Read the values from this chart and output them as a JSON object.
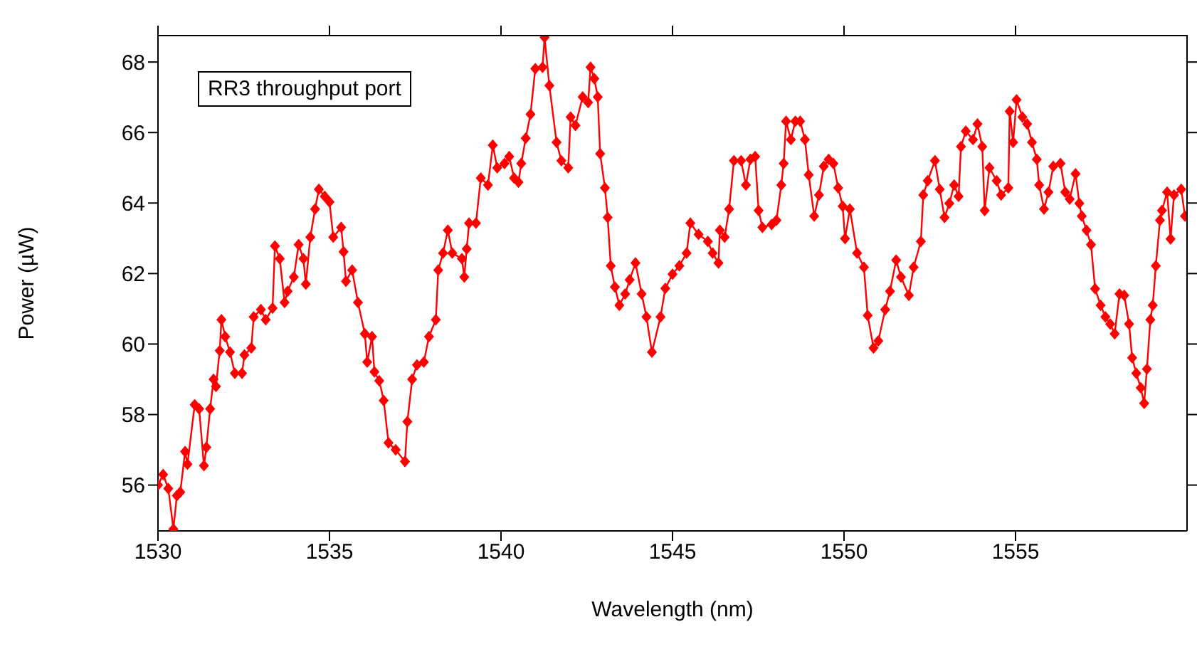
{
  "chart_data": {
    "type": "line",
    "xlabel": "Wavelength (nm)",
    "ylabel": "Power (µW)",
    "annotations": [
      "RR3 throughput port"
    ],
    "xlim": [
      1530,
      1560
    ],
    "xticks": [
      1530,
      1535,
      1540,
      1545,
      1550,
      1555
    ],
    "ylim": [
      54.7,
      68.75
    ],
    "yticks": [
      56,
      58,
      60,
      62,
      64,
      66,
      68
    ],
    "marker": "diamond",
    "line_style": "solid",
    "series": [
      {
        "color": "#ff0000",
        "x": [
          1530.0,
          1530.15,
          1530.3,
          1530.45,
          1530.55,
          1530.65,
          1530.79,
          1530.86,
          1531.07,
          1531.2,
          1531.34,
          1531.41,
          1531.52,
          1531.62,
          1531.69,
          1531.8,
          1531.85,
          1531.96,
          1532.1,
          1532.24,
          1532.45,
          1532.52,
          1532.72,
          1532.79,
          1533.0,
          1533.14,
          1533.34,
          1533.41,
          1533.55,
          1533.69,
          1533.78,
          1533.96,
          1534.1,
          1534.24,
          1534.31,
          1534.44,
          1534.58,
          1534.69,
          1534.86,
          1535.0,
          1535.11,
          1535.34,
          1535.41,
          1535.48,
          1535.66,
          1535.83,
          1536.03,
          1536.1,
          1536.24,
          1536.31,
          1536.45,
          1536.58,
          1536.72,
          1536.93,
          1537.2,
          1537.27,
          1537.41,
          1537.55,
          1537.75,
          1537.9,
          1538.1,
          1538.17,
          1538.31,
          1538.45,
          1538.58,
          1538.86,
          1538.93,
          1539.0,
          1539.07,
          1539.27,
          1539.41,
          1539.62,
          1539.76,
          1539.89,
          1540.1,
          1540.24,
          1540.38,
          1540.51,
          1540.59,
          1540.72,
          1540.86,
          1541.0,
          1541.21,
          1541.27,
          1541.41,
          1541.62,
          1541.76,
          1541.96,
          1542.03,
          1542.17,
          1542.38,
          1542.54,
          1542.61,
          1542.72,
          1542.82,
          1542.89,
          1543.03,
          1543.11,
          1543.2,
          1543.32,
          1543.45,
          1543.62,
          1543.75,
          1543.92,
          1544.1,
          1544.24,
          1544.4,
          1544.65,
          1544.79,
          1545.0,
          1545.2,
          1545.41,
          1545.52,
          1545.76,
          1546.03,
          1546.17,
          1546.34,
          1546.38,
          1546.52,
          1546.65,
          1546.79,
          1547.0,
          1547.14,
          1547.27,
          1547.41,
          1547.51,
          1547.62,
          1547.89,
          1548.03,
          1548.17,
          1548.24,
          1548.31,
          1548.45,
          1548.58,
          1548.72,
          1548.86,
          1548.97,
          1549.13,
          1549.27,
          1549.41,
          1549.55,
          1549.69,
          1549.83,
          1549.96,
          1550.03,
          1550.17,
          1550.38,
          1550.58,
          1550.69,
          1550.86,
          1551.0,
          1551.2,
          1551.34,
          1551.52,
          1551.66,
          1551.89,
          1552.03,
          1552.24,
          1552.31,
          1552.44,
          1552.65,
          1552.79,
          1552.93,
          1553.07,
          1553.21,
          1553.34,
          1553.41,
          1553.55,
          1553.76,
          1553.89,
          1554.03,
          1554.1,
          1554.24,
          1554.45,
          1554.58,
          1554.79,
          1554.83,
          1554.93,
          1555.03,
          1555.2,
          1555.34,
          1555.48,
          1555.62,
          1555.69,
          1555.83,
          1555.96,
          1556.1,
          1556.31,
          1556.45,
          1556.58,
          1556.75,
          1556.86,
          1556.93,
          1557.07,
          1557.2,
          1557.32,
          1557.48,
          1557.62,
          1557.76,
          1557.89,
          1558.03,
          1558.17,
          1558.31,
          1558.4,
          1558.52,
          1558.65,
          1558.75,
          1558.83,
          1558.93,
          1559.0,
          1559.09,
          1559.21,
          1559.27,
          1559.42,
          1559.52,
          1559.62,
          1559.83,
          1559.94
        ],
        "values": [
          56.0,
          56.3,
          55.9,
          54.75,
          55.7,
          55.8,
          56.95,
          56.59,
          58.28,
          58.16,
          56.55,
          57.07,
          58.16,
          59.0,
          58.8,
          59.81,
          60.69,
          60.21,
          59.77,
          59.17,
          59.17,
          59.69,
          59.89,
          60.77,
          60.98,
          60.69,
          61.02,
          62.78,
          62.42,
          61.18,
          61.5,
          61.9,
          62.82,
          62.42,
          61.7,
          63.03,
          63.83,
          64.39,
          64.19,
          64.03,
          63.03,
          63.31,
          62.62,
          61.78,
          62.1,
          61.18,
          60.29,
          59.49,
          60.21,
          59.21,
          58.96,
          58.4,
          57.2,
          57.0,
          56.67,
          57.8,
          59.0,
          59.41,
          59.49,
          60.21,
          60.69,
          62.1,
          62.58,
          63.23,
          62.58,
          62.42,
          61.9,
          62.7,
          63.43,
          63.43,
          64.71,
          64.51,
          65.64,
          65.0,
          65.12,
          65.32,
          64.71,
          64.59,
          65.12,
          65.84,
          66.52,
          67.81,
          67.85,
          68.7,
          67.33,
          65.72,
          65.2,
          65.0,
          66.44,
          66.2,
          67.01,
          66.85,
          67.85,
          67.53,
          67.01,
          65.4,
          64.43,
          63.59,
          62.22,
          61.62,
          61.1,
          61.42,
          61.82,
          62.3,
          61.42,
          60.77,
          59.77,
          60.77,
          61.58,
          61.98,
          62.22,
          62.58,
          63.43,
          63.11,
          62.91,
          62.58,
          62.3,
          63.23,
          63.03,
          63.83,
          65.2,
          65.2,
          64.51,
          65.24,
          65.32,
          63.79,
          63.31,
          63.39,
          63.51,
          64.51,
          65.12,
          66.32,
          65.8,
          66.32,
          66.32,
          65.8,
          64.8,
          63.63,
          64.23,
          65.04,
          65.24,
          65.12,
          64.43,
          63.91,
          62.99,
          63.83,
          62.58,
          62.18,
          60.81,
          59.89,
          60.09,
          60.98,
          61.5,
          62.38,
          61.9,
          61.38,
          62.18,
          62.91,
          64.23,
          64.63,
          65.2,
          64.39,
          63.59,
          63.99,
          64.51,
          64.19,
          65.6,
          66.04,
          65.8,
          66.24,
          65.6,
          63.79,
          65.0,
          64.63,
          64.23,
          64.43,
          66.6,
          65.72,
          66.93,
          66.44,
          66.24,
          65.72,
          65.24,
          64.51,
          63.83,
          64.31,
          65.04,
          65.12,
          64.31,
          64.11,
          64.83,
          63.99,
          63.63,
          63.23,
          62.82,
          61.57,
          61.1,
          60.77,
          60.57,
          60.29,
          61.42,
          61.38,
          60.57,
          59.61,
          59.17,
          58.76,
          58.32,
          59.29,
          60.69,
          61.1,
          62.22,
          63.51,
          63.79,
          64.31,
          62.98,
          64.23,
          64.39,
          63.63
        ]
      }
    ]
  }
}
